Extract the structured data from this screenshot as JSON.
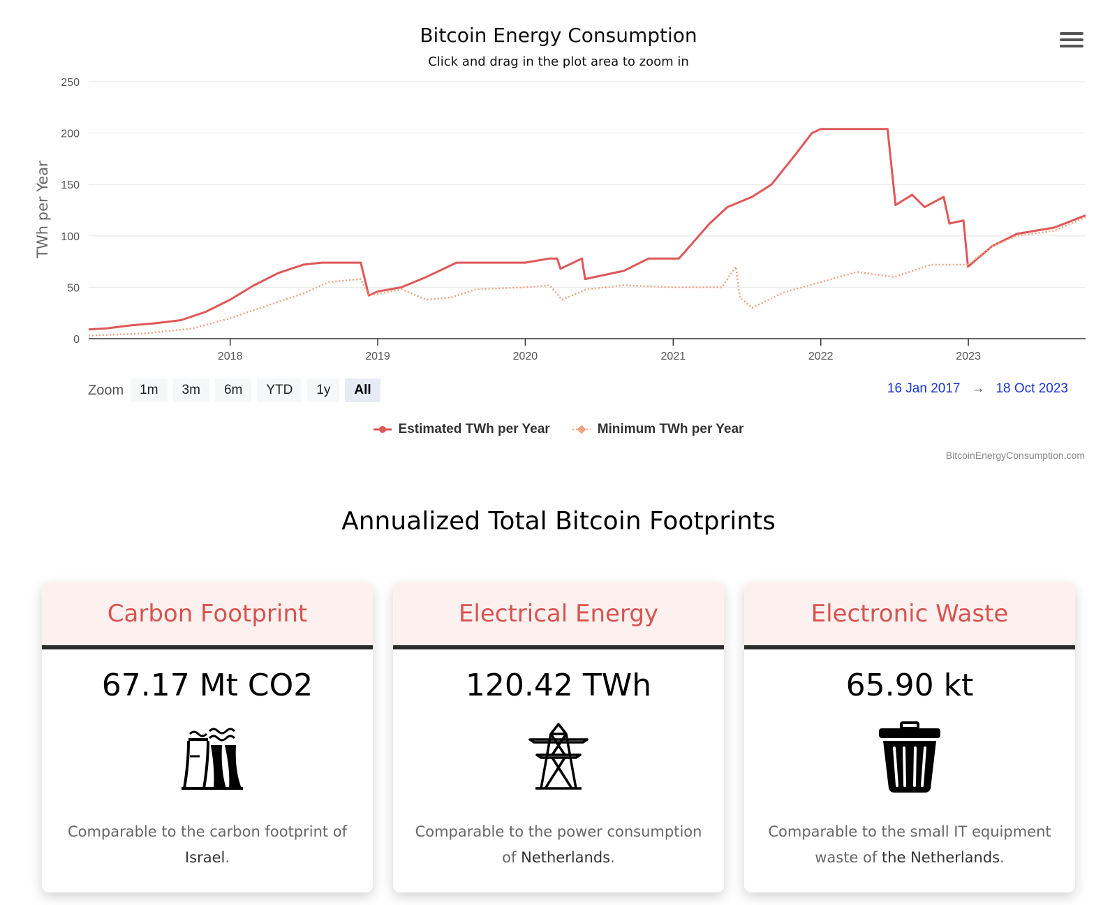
{
  "header": {
    "title": "Bitcoin Energy Consumption",
    "subtitle": "Click and drag in the plot area to zoom in"
  },
  "menu": {
    "icon": "hamburger-menu-icon"
  },
  "range_selector": {
    "zoom_label": "Zoom",
    "buttons": [
      "1m",
      "3m",
      "6m",
      "YTD",
      "1y",
      "All"
    ],
    "active": "All",
    "from_date": "16 Jan 2017",
    "arrow": "→",
    "to_date": "18 Oct 2023"
  },
  "legend": {
    "estimated": "Estimated TWh per Year",
    "minimum": "Minimum TWh per Year"
  },
  "credits": "BitcoinEnergyConsumption.com",
  "colors": {
    "estimated": "#e05757",
    "minimum": "#f3a07c",
    "accent": "#d9534f",
    "date_link": "#1a35d8"
  },
  "chart_data": {
    "type": "line",
    "title": "Bitcoin Energy Consumption",
    "subtitle": "Click and drag in the plot area to zoom in",
    "ylabel": "TWh per Year",
    "xlabel": "",
    "ylim": [
      0,
      250
    ],
    "yticks": [
      0,
      50,
      100,
      150,
      200,
      250
    ],
    "xlim": [
      "2017-01-16",
      "2023-10-18"
    ],
    "xticks": [
      "2018",
      "2019",
      "2020",
      "2021",
      "2022",
      "2023"
    ],
    "grid": true,
    "legend_position": "bottom-center",
    "series": [
      {
        "name": "Estimated TWh per Year",
        "style": "solid",
        "points": [
          [
            "2017-01-16",
            9
          ],
          [
            "2017-03-01",
            10
          ],
          [
            "2017-05-01",
            13
          ],
          [
            "2017-07-01",
            15
          ],
          [
            "2017-09-01",
            18
          ],
          [
            "2017-11-01",
            26
          ],
          [
            "2018-01-01",
            38
          ],
          [
            "2018-03-01",
            52
          ],
          [
            "2018-05-01",
            64
          ],
          [
            "2018-07-01",
            72
          ],
          [
            "2018-08-15",
            74
          ],
          [
            "2018-11-20",
            74
          ],
          [
            "2018-12-10",
            42
          ],
          [
            "2019-01-01",
            46
          ],
          [
            "2019-03-01",
            50
          ],
          [
            "2019-05-01",
            60
          ],
          [
            "2019-07-15",
            74
          ],
          [
            "2020-01-01",
            74
          ],
          [
            "2020-03-01",
            78
          ],
          [
            "2020-03-20",
            78
          ],
          [
            "2020-03-28",
            68
          ],
          [
            "2020-05-20",
            78
          ],
          [
            "2020-05-28",
            58
          ],
          [
            "2020-09-01",
            66
          ],
          [
            "2020-11-01",
            78
          ],
          [
            "2021-01-15",
            78
          ],
          [
            "2021-04-01",
            112
          ],
          [
            "2021-05-15",
            128
          ],
          [
            "2021-07-15",
            138
          ],
          [
            "2021-09-01",
            150
          ],
          [
            "2021-11-01",
            180
          ],
          [
            "2021-12-10",
            200
          ],
          [
            "2022-01-01",
            204
          ],
          [
            "2022-06-15",
            204
          ],
          [
            "2022-07-05",
            130
          ],
          [
            "2022-08-15",
            140
          ],
          [
            "2022-09-15",
            128
          ],
          [
            "2022-11-01",
            138
          ],
          [
            "2022-11-15",
            112
          ],
          [
            "2022-12-20",
            115
          ],
          [
            "2022-12-31",
            70
          ],
          [
            "2023-03-01",
            90
          ],
          [
            "2023-05-01",
            102
          ],
          [
            "2023-08-01",
            108
          ],
          [
            "2023-10-18",
            120
          ]
        ]
      },
      {
        "name": "Minimum TWh per Year",
        "style": "dotted",
        "points": [
          [
            "2017-01-16",
            3
          ],
          [
            "2017-06-01",
            5
          ],
          [
            "2017-10-01",
            10
          ],
          [
            "2018-01-01",
            20
          ],
          [
            "2018-04-01",
            32
          ],
          [
            "2018-07-01",
            44
          ],
          [
            "2018-09-01",
            55
          ],
          [
            "2018-11-20",
            58
          ],
          [
            "2018-12-10",
            42
          ],
          [
            "2019-03-01",
            48
          ],
          [
            "2019-05-01",
            38
          ],
          [
            "2019-07-01",
            40
          ],
          [
            "2019-09-01",
            48
          ],
          [
            "2020-01-01",
            50
          ],
          [
            "2020-03-01",
            52
          ],
          [
            "2020-04-01",
            38
          ],
          [
            "2020-06-01",
            48
          ],
          [
            "2020-09-01",
            52
          ],
          [
            "2021-01-01",
            50
          ],
          [
            "2021-05-01",
            50
          ],
          [
            "2021-06-05",
            70
          ],
          [
            "2021-06-15",
            40
          ],
          [
            "2021-07-15",
            30
          ],
          [
            "2021-10-01",
            45
          ],
          [
            "2022-01-01",
            55
          ],
          [
            "2022-04-01",
            65
          ],
          [
            "2022-07-01",
            60
          ],
          [
            "2022-10-01",
            72
          ],
          [
            "2022-12-31",
            72
          ],
          [
            "2023-03-01",
            90
          ],
          [
            "2023-05-01",
            100
          ],
          [
            "2023-08-01",
            105
          ],
          [
            "2023-10-18",
            118
          ]
        ]
      }
    ]
  },
  "section": {
    "title": "Annualized Total Bitcoin Footprints"
  },
  "cards": [
    {
      "title": "Carbon Footprint",
      "value": "67.17 Mt CO2",
      "icon": "power-plant-icon",
      "text_before": "Comparable to the carbon footprint of",
      "highlight": "Israel",
      "text_after": "."
    },
    {
      "title": "Electrical Energy",
      "value": "120.42 TWh",
      "icon": "power-tower-icon",
      "text_before": "Comparable to the power consumption of",
      "highlight": "Netherlands",
      "text_after": "."
    },
    {
      "title": "Electronic Waste",
      "value": "65.90 kt",
      "icon": "trash-bin-icon",
      "text_before": "Comparable to the small IT equipment waste of",
      "highlight": "the Netherlands",
      "text_after": "."
    }
  ]
}
